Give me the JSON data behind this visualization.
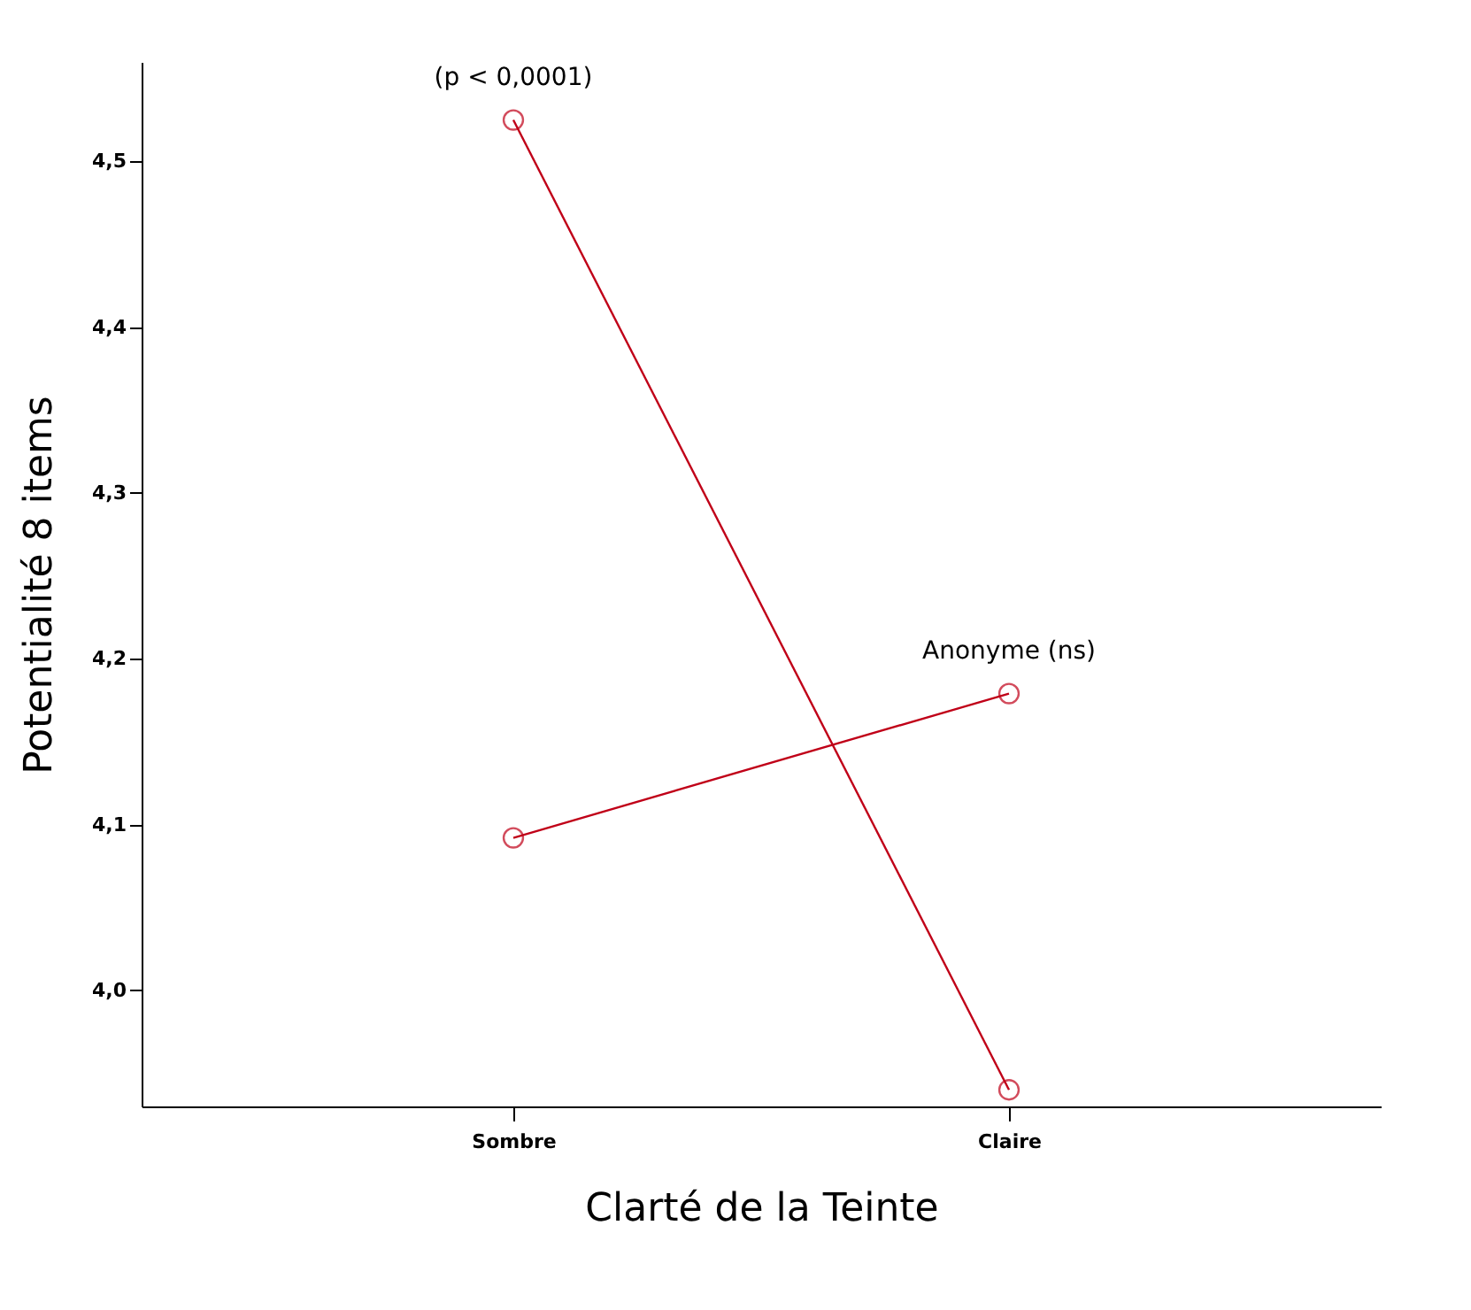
{
  "chart_data": {
    "type": "line",
    "xlabel": "Clarté de la Teinte",
    "ylabel": "Potentialité 8 items",
    "categories": [
      "Sombre",
      "Claire"
    ],
    "series": [
      {
        "name": "(p < 0,0001)",
        "color": "#c00018",
        "values": [
          4.525,
          3.94
        ]
      },
      {
        "name": "Anonyme (ns)",
        "color": "#c00018",
        "values": [
          4.092,
          4.179
        ]
      }
    ],
    "ylim": [
      3.93,
      4.56
    ],
    "yticks": [
      {
        "value": 4.0,
        "label": "4,0"
      },
      {
        "value": 4.1,
        "label": "4,1"
      },
      {
        "value": 4.2,
        "label": "4,2"
      },
      {
        "value": 4.3,
        "label": "4,3"
      },
      {
        "value": 4.4,
        "label": "4,4"
      },
      {
        "value": 4.5,
        "label": "4,5"
      }
    ],
    "grid": false,
    "marker": "circle",
    "line_style": "solid"
  }
}
